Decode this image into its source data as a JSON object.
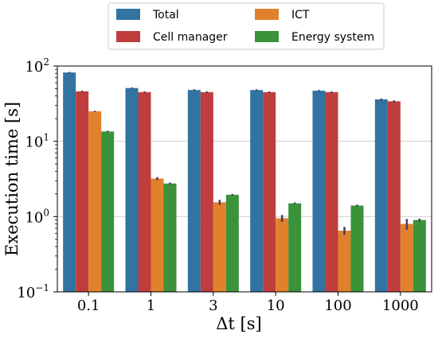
{
  "chart_data": {
    "type": "bar",
    "xlabel": "Δt [s]",
    "ylabel": "Execution time [s]",
    "yscale": "log",
    "ylim": [
      0.1,
      100
    ],
    "grid": "y-major",
    "legend_position": "top-center",
    "categories": [
      "0.1",
      "1",
      "3",
      "10",
      "100",
      "1000"
    ],
    "series": [
      {
        "name": "Total",
        "color": "#3274a1",
        "values": [
          82,
          51,
          48,
          48,
          47,
          36
        ],
        "err": [
          1.5,
          1,
          1,
          1,
          1,
          1
        ]
      },
      {
        "name": "Cell manager",
        "color": "#c03d3e",
        "values": [
          46,
          45,
          45,
          45,
          45,
          34
        ],
        "err": [
          1,
          1,
          1,
          1,
          1,
          1
        ]
      },
      {
        "name": "ICT",
        "color": "#e1812c",
        "values": [
          25,
          3.2,
          1.55,
          0.95,
          0.65,
          0.8
        ],
        "err": [
          0.5,
          0.15,
          0.12,
          0.1,
          0.08,
          0.13
        ]
      },
      {
        "name": "Energy system",
        "color": "#3a923a",
        "values": [
          13.5,
          2.75,
          1.95,
          1.5,
          1.4,
          0.9
        ],
        "err": [
          0.3,
          0.08,
          0.05,
          0.04,
          0.04,
          0.04
        ]
      }
    ],
    "y_ticks": [
      {
        "value": 0.1,
        "base": "10",
        "exp": "−1"
      },
      {
        "value": 1,
        "base": "10",
        "exp": "0"
      },
      {
        "value": 10,
        "base": "10",
        "exp": "1"
      },
      {
        "value": 100,
        "base": "10",
        "exp": "2"
      }
    ]
  }
}
